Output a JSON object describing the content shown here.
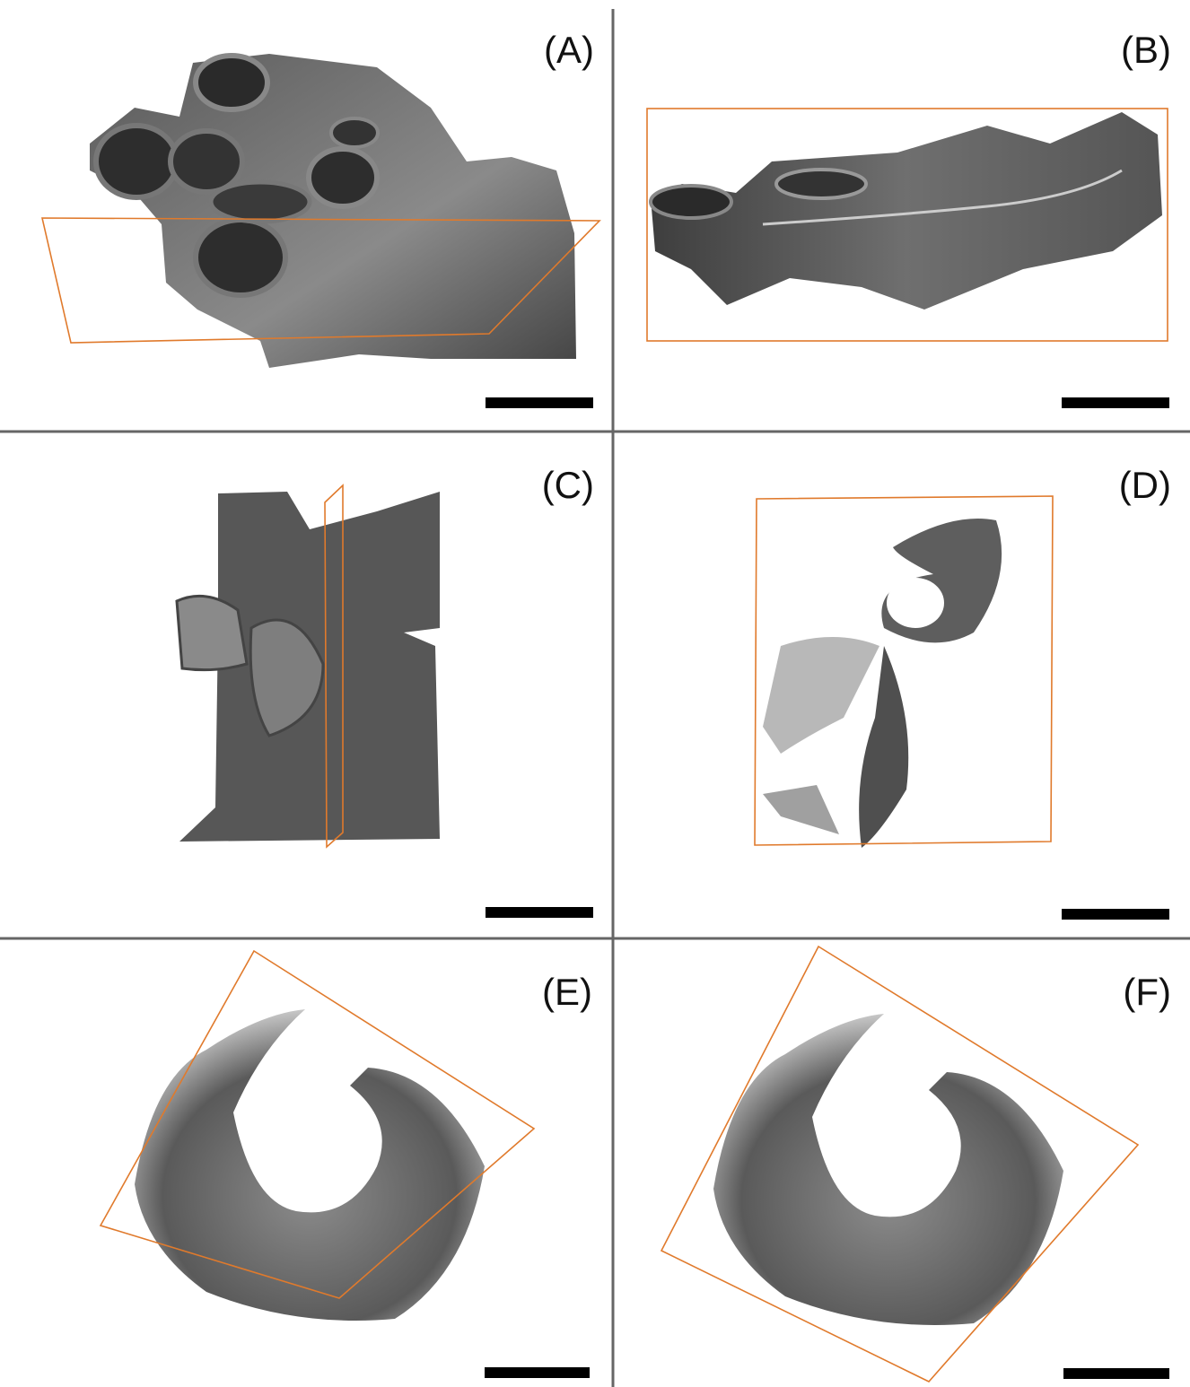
{
  "panels": [
    {
      "label": "(A)"
    },
    {
      "label": "(B)"
    },
    {
      "label": "(C)"
    },
    {
      "label": "(D)"
    },
    {
      "label": "(E)"
    },
    {
      "label": "(F)"
    }
  ]
}
